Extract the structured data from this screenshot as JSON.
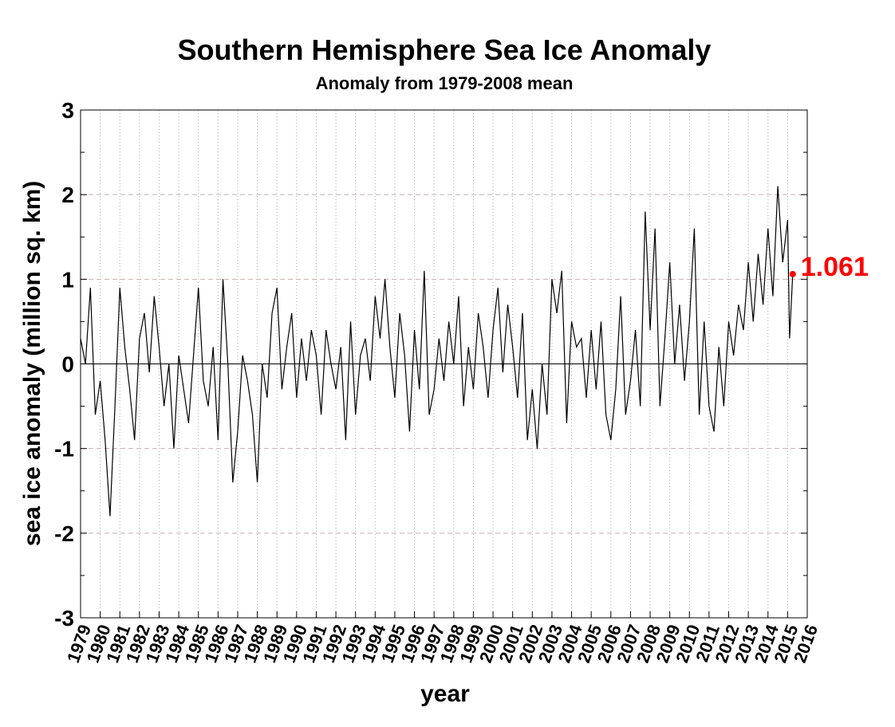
{
  "chart_data": {
    "type": "line",
    "title": "Southern Hemisphere Sea Ice Anomaly",
    "subtitle": "Anomaly from 1979-2008 mean",
    "x_label": "year",
    "y_label": "sea ice anomaly (million sq. km)",
    "xlim": [
      1979,
      2016
    ],
    "ylim": [
      -3,
      3
    ],
    "xticks": [
      1979,
      1980,
      1981,
      1982,
      1983,
      1984,
      1985,
      1986,
      1987,
      1988,
      1989,
      1990,
      1991,
      1992,
      1993,
      1994,
      1995,
      1996,
      1997,
      1998,
      1999,
      2000,
      2001,
      2002,
      2003,
      2004,
      2005,
      2006,
      2007,
      2008,
      2009,
      2010,
      2011,
      2012,
      2013,
      2014,
      2015,
      2016
    ],
    "yticks": [
      -3,
      -2,
      -1,
      0,
      1,
      2,
      3
    ],
    "y_minor_ticks": [
      -2.5,
      -1.5,
      -0.5,
      0.5,
      1.5,
      2.5
    ],
    "grid": true,
    "highlight_color": "#ff0000",
    "series": [
      {
        "color": "#000000",
        "x": [
          1979,
          1979.25,
          1979.5,
          1979.75,
          1980,
          1980.25,
          1980.5,
          1980.75,
          1981,
          1981.25,
          1981.5,
          1981.75,
          1982,
          1982.25,
          1982.5,
          1982.75,
          1983,
          1983.25,
          1983.5,
          1983.75,
          1984,
          1984.25,
          1984.5,
          1984.75,
          1985,
          1985.25,
          1985.5,
          1985.75,
          1986,
          1986.25,
          1986.5,
          1986.75,
          1987,
          1987.25,
          1987.5,
          1987.75,
          1988,
          1988.25,
          1988.5,
          1988.75,
          1989,
          1989.25,
          1989.5,
          1989.75,
          1990,
          1990.25,
          1990.5,
          1990.75,
          1991,
          1991.25,
          1991.5,
          1991.75,
          1992,
          1992.25,
          1992.5,
          1992.75,
          1993,
          1993.25,
          1993.5,
          1993.75,
          1994,
          1994.25,
          1994.5,
          1994.75,
          1995,
          1995.25,
          1995.5,
          1995.75,
          1996,
          1996.25,
          1996.5,
          1996.75,
          1997,
          1997.25,
          1997.5,
          1997.75,
          1998,
          1998.25,
          1998.5,
          1998.75,
          1999,
          1999.25,
          1999.5,
          1999.75,
          2000,
          2000.25,
          2000.5,
          2000.75,
          2001,
          2001.25,
          2001.5,
          2001.75,
          2002,
          2002.25,
          2002.5,
          2002.75,
          2003,
          2003.25,
          2003.5,
          2003.75,
          2004,
          2004.25,
          2004.5,
          2004.75,
          2005,
          2005.25,
          2005.5,
          2005.75,
          2006,
          2006.25,
          2006.5,
          2006.75,
          2007,
          2007.25,
          2007.5,
          2007.75,
          2008,
          2008.25,
          2008.5,
          2008.75,
          2009,
          2009.25,
          2009.5,
          2009.75,
          2010,
          2010.25,
          2010.5,
          2010.75,
          2011,
          2011.25,
          2011.5,
          2011.75,
          2012,
          2012.25,
          2012.5,
          2012.75,
          2013,
          2013.25,
          2013.5,
          2013.75,
          2014,
          2014.25,
          2014.5,
          2014.75,
          2015,
          2015.1,
          2015.26
        ],
        "values": [
          0.3,
          0.0,
          0.9,
          -0.6,
          -0.2,
          -0.9,
          -1.8,
          -0.5,
          0.9,
          0.2,
          -0.3,
          -0.9,
          0.3,
          0.6,
          -0.1,
          0.8,
          0.2,
          -0.5,
          0.0,
          -1.0,
          0.1,
          -0.3,
          -0.7,
          0.1,
          0.9,
          -0.2,
          -0.5,
          0.2,
          -0.9,
          1.0,
          0.0,
          -1.4,
          -0.8,
          0.1,
          -0.2,
          -0.6,
          -1.4,
          0.0,
          -0.4,
          0.6,
          0.9,
          -0.3,
          0.2,
          0.6,
          -0.4,
          0.3,
          -0.2,
          0.4,
          0.1,
          -0.6,
          0.4,
          0.0,
          -0.3,
          0.2,
          -0.9,
          0.5,
          -0.6,
          0.1,
          0.3,
          -0.2,
          0.8,
          0.3,
          1.0,
          0.2,
          -0.4,
          0.6,
          0.1,
          -0.8,
          0.4,
          -0.3,
          1.1,
          -0.6,
          -0.3,
          0.3,
          -0.2,
          0.5,
          0.0,
          0.8,
          -0.5,
          0.2,
          -0.3,
          0.6,
          0.2,
          -0.4,
          0.4,
          0.9,
          -0.1,
          0.7,
          0.2,
          -0.4,
          0.6,
          -0.9,
          -0.3,
          -1.0,
          0.0,
          -0.6,
          1.0,
          0.6,
          1.1,
          -0.7,
          0.5,
          0.2,
          0.3,
          -0.4,
          0.4,
          -0.3,
          0.5,
          -0.6,
          -0.9,
          -0.3,
          0.8,
          -0.6,
          -0.2,
          0.4,
          -0.5,
          1.8,
          0.4,
          1.6,
          -0.5,
          0.3,
          1.2,
          0.0,
          0.7,
          -0.2,
          0.5,
          1.6,
          -0.6,
          0.5,
          -0.5,
          -0.8,
          0.2,
          -0.5,
          0.5,
          0.1,
          0.7,
          0.4,
          1.2,
          0.5,
          1.3,
          0.7,
          1.6,
          0.8,
          2.1,
          1.2,
          1.7,
          0.3,
          1.061
        ]
      }
    ]
  }
}
